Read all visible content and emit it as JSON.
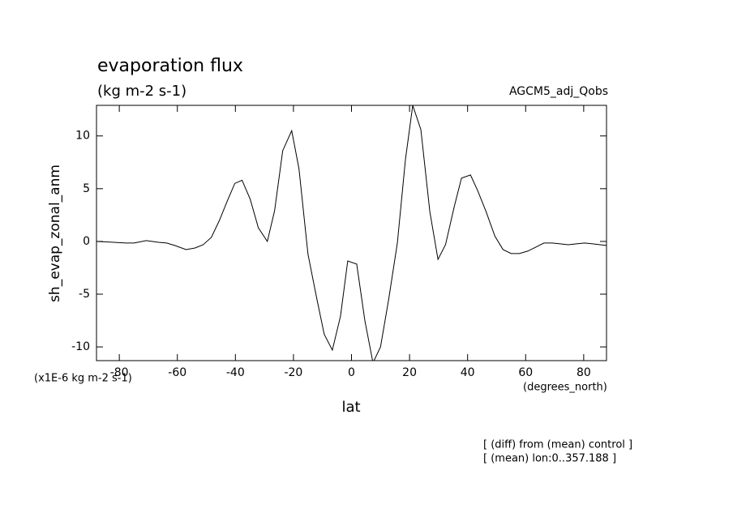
{
  "chart_data": {
    "type": "line",
    "title": "evaporation flux",
    "subtitle": "(kg m-2 s-1)",
    "annotation_right": "AGCM5_adj_Qobs",
    "y_label": "sh_evap_zonal_anm",
    "y_units": "(x1E-6 kg m-2 s-1)",
    "x_label": "lat",
    "x_units": "(degrees_north)",
    "notes": [
      "[ (diff) from (mean) control ]",
      "[ (mean) lon:0..357.188 ]"
    ],
    "xlim": [
      -87.86,
      87.86
    ],
    "xticks": [
      -80,
      -60,
      -40,
      -20,
      0,
      20,
      40,
      60,
      80
    ],
    "ylim": [
      -11.3,
      12.9
    ],
    "yticks": [
      -10,
      -5,
      0,
      5,
      10
    ],
    "color": "#000000",
    "x": [
      -87.8,
      -81.9,
      -77.7,
      -74.9,
      -70.7,
      -66.5,
      -63.7,
      -60.9,
      -57.0,
      -53.9,
      -51.1,
      -48.3,
      -45.5,
      -42.7,
      -40.2,
      -37.7,
      -34.9,
      -32.1,
      -29.0,
      -26.5,
      -23.7,
      -20.6,
      -18.1,
      -15.0,
      -11.9,
      -9.4,
      -6.6,
      -3.8,
      -1.3,
      1.8,
      4.6,
      7.4,
      10.0,
      12.8,
      15.8,
      18.6,
      21.1,
      23.9,
      27.0,
      29.8,
      32.4,
      35.4,
      37.9,
      41.0,
      43.5,
      46.4,
      49.4,
      52.2,
      55.0,
      57.8,
      60.7,
      63.5,
      66.3,
      69.1,
      71.9,
      74.7,
      77.5,
      80.3,
      83.1,
      87.8
    ],
    "values": [
      0,
      -0.08,
      -0.15,
      -0.15,
      0.08,
      -0.08,
      -0.15,
      -0.38,
      -0.77,
      -0.62,
      -0.31,
      0.38,
      2.0,
      3.9,
      5.5,
      5.8,
      4.0,
      1.3,
      0,
      2.9,
      8.6,
      10.5,
      6.9,
      -1.2,
      -5.5,
      -8.8,
      -10.3,
      -7.1,
      -1.85,
      -2.15,
      -7.5,
      -11.5,
      -10.0,
      -5.5,
      -0.15,
      7.8,
      12.9,
      10.6,
      2.8,
      -1.7,
      -0.3,
      3.3,
      6.0,
      6.3,
      4.8,
      2.8,
      0.5,
      -0.77,
      -1.15,
      -1.15,
      -0.92,
      -0.54,
      -0.15,
      -0.15,
      -0.23,
      -0.31,
      -0.23,
      -0.15,
      -0.23,
      -0.38
    ]
  }
}
